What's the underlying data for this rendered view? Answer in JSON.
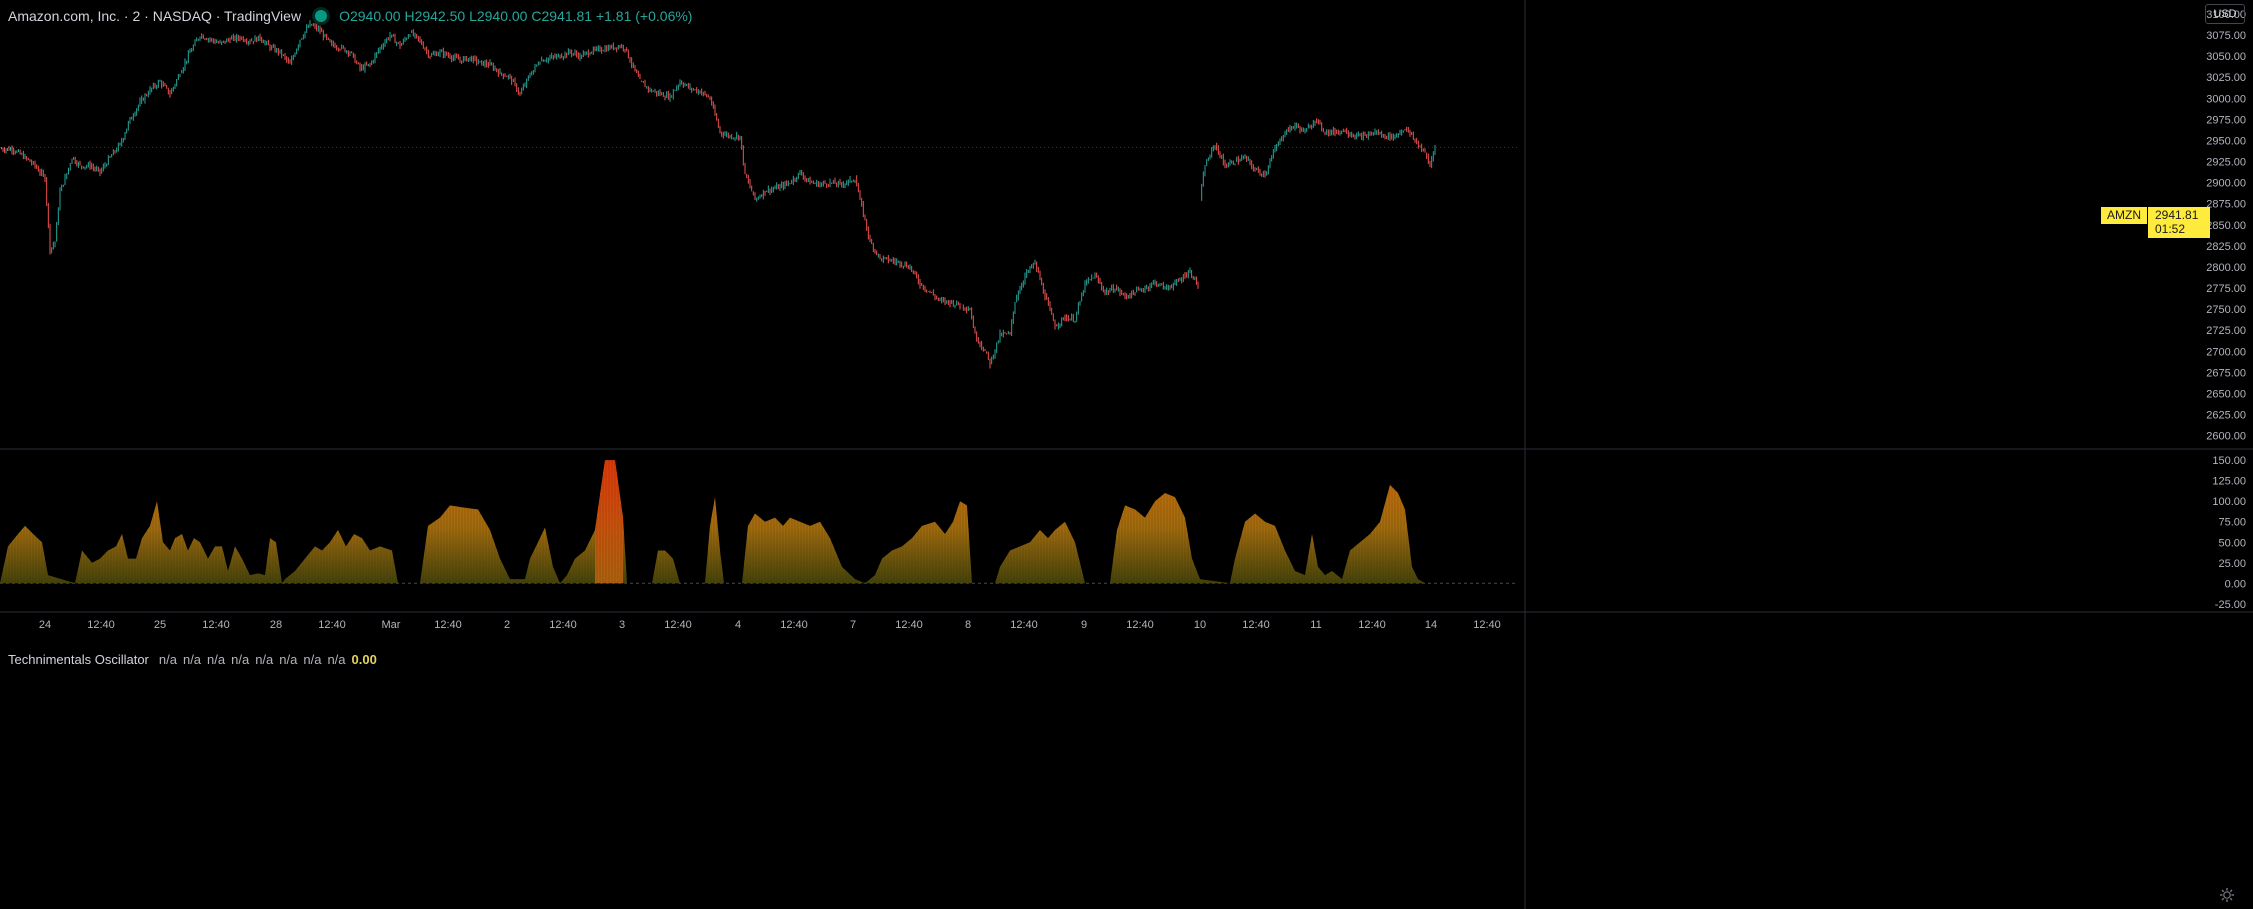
{
  "header": {
    "title": "Amazon.com, Inc. · 2 · NASDAQ · TradingView",
    "ohlc": "O2940.00  H2942.50  L2940.00  C2941.81  +1.81 (+0.06%)"
  },
  "currency_button": "USD",
  "price_tag": {
    "symbol": "AMZN",
    "price": "2941.81",
    "countdown": "01:52"
  },
  "oscillator_legend": {
    "name": "Technimentals Oscillator",
    "values": [
      "n/a",
      "n/a",
      "n/a",
      "n/a",
      "n/a",
      "n/a",
      "n/a",
      "n/a"
    ],
    "last": "0.00"
  },
  "colors": {
    "up": "#26a69a",
    "down": "#ef5350",
    "osc_low": "#5e5a10",
    "osc_mid": "#d4850f",
    "osc_high": "#e34a0c",
    "axis_text": "#b2b5be"
  },
  "chart_data": [
    {
      "type": "candlestick",
      "title": "Amazon.com, Inc. · 2 · NASDAQ",
      "ylim": [
        2590,
        3100
      ],
      "yticks": [
        3100,
        3075,
        3050,
        3025,
        3000,
        2975,
        2950,
        2925,
        2900,
        2875,
        2850,
        2825,
        2800,
        2775,
        2750,
        2725,
        2700,
        2675,
        2650,
        2625,
        2600
      ],
      "ytick_labels": [
        "3100.00",
        "3075.00",
        "3050.00",
        "3025.00",
        "3000.00",
        "2975.00",
        "2950.00",
        "2925.00",
        "2900.00",
        "2875.00",
        "2850.00",
        "2825.00",
        "2800.00",
        "2775.00",
        "2750.00",
        "2725.00",
        "2700.00",
        "2675.00",
        "2650.00",
        "2625.00",
        "2600.00"
      ],
      "x_labels": [
        "24",
        "12:40",
        "25",
        "12:40",
        "28",
        "12:40",
        "Mar",
        "12:40",
        "2",
        "12:40",
        "3",
        "12:40",
        "4",
        "12:40",
        "7",
        "12:40",
        "8",
        "12:40",
        "9",
        "12:40",
        "10",
        "12:40",
        "11",
        "12:40",
        "14",
        "12:40"
      ],
      "path_points": [
        [
          0,
          2940
        ],
        [
          12,
          2940
        ],
        [
          25,
          2930
        ],
        [
          35,
          2920
        ],
        [
          45,
          2905
        ],
        [
          50,
          2820
        ],
        [
          55,
          2830
        ],
        [
          60,
          2890
        ],
        [
          65,
          2905
        ],
        [
          72,
          2930
        ],
        [
          80,
          2920
        ],
        [
          90,
          2920
        ],
        [
          100,
          2912
        ],
        [
          110,
          2930
        ],
        [
          120,
          2945
        ],
        [
          130,
          2975
        ],
        [
          140,
          2995
        ],
        [
          150,
          3010
        ],
        [
          160,
          3020
        ],
        [
          170,
          3005
        ],
        [
          180,
          3030
        ],
        [
          190,
          3055
        ],
        [
          200,
          3075
        ],
        [
          210,
          3070
        ],
        [
          220,
          3065
        ],
        [
          230,
          3070
        ],
        [
          240,
          3072
        ],
        [
          250,
          3068
        ],
        [
          260,
          3072
        ],
        [
          270,
          3060
        ],
        [
          280,
          3055
        ],
        [
          290,
          3040
        ],
        [
          300,
          3070
        ],
        [
          310,
          3088
        ],
        [
          320,
          3080
        ],
        [
          330,
          3065
        ],
        [
          340,
          3060
        ],
        [
          350,
          3055
        ],
        [
          360,
          3035
        ],
        [
          370,
          3040
        ],
        [
          380,
          3060
        ],
        [
          390,
          3075
        ],
        [
          400,
          3062
        ],
        [
          410,
          3078
        ],
        [
          420,
          3068
        ],
        [
          430,
          3050
        ],
        [
          440,
          3055
        ],
        [
          450,
          3050
        ],
        [
          460,
          3045
        ],
        [
          470,
          3048
        ],
        [
          480,
          3042
        ],
        [
          490,
          3040
        ],
        [
          500,
          3030
        ],
        [
          510,
          3025
        ],
        [
          520,
          3005
        ],
        [
          530,
          3028
        ],
        [
          540,
          3045
        ],
        [
          550,
          3048
        ],
        [
          560,
          3050
        ],
        [
          570,
          3055
        ],
        [
          580,
          3050
        ],
        [
          590,
          3055
        ],
        [
          600,
          3058
        ],
        [
          610,
          3060
        ],
        [
          620,
          3062
        ],
        [
          625,
          3060
        ],
        [
          630,
          3045
        ],
        [
          640,
          3020
        ],
        [
          650,
          3010
        ],
        [
          660,
          3005
        ],
        [
          670,
          3002
        ],
        [
          680,
          3020
        ],
        [
          690,
          3012
        ],
        [
          700,
          3008
        ],
        [
          710,
          3000
        ],
        [
          720,
          2960
        ],
        [
          730,
          2955
        ],
        [
          740,
          2955
        ],
        [
          745,
          2910
        ],
        [
          755,
          2880
        ],
        [
          765,
          2890
        ],
        [
          780,
          2895
        ],
        [
          790,
          2900
        ],
        [
          800,
          2912
        ],
        [
          810,
          2900
        ],
        [
          820,
          2898
        ],
        [
          830,
          2900
        ],
        [
          840,
          2898
        ],
        [
          850,
          2902
        ],
        [
          855,
          2905
        ],
        [
          860,
          2880
        ],
        [
          870,
          2830
        ],
        [
          880,
          2810
        ],
        [
          890,
          2808
        ],
        [
          900,
          2805
        ],
        [
          910,
          2800
        ],
        [
          920,
          2780
        ],
        [
          930,
          2770
        ],
        [
          940,
          2760
        ],
        [
          950,
          2758
        ],
        [
          960,
          2755
        ],
        [
          970,
          2750
        ],
        [
          975,
          2720
        ],
        [
          985,
          2700
        ],
        [
          990,
          2685
        ],
        [
          1000,
          2720
        ],
        [
          1010,
          2720
        ],
        [
          1015,
          2760
        ],
        [
          1025,
          2790
        ],
        [
          1035,
          2805
        ],
        [
          1045,
          2765
        ],
        [
          1055,
          2730
        ],
        [
          1065,
          2740
        ],
        [
          1075,
          2738
        ],
        [
          1085,
          2780
        ],
        [
          1095,
          2790
        ],
        [
          1105,
          2770
        ],
        [
          1115,
          2775
        ],
        [
          1125,
          2765
        ],
        [
          1135,
          2770
        ],
        [
          1145,
          2775
        ],
        [
          1155,
          2782
        ],
        [
          1165,
          2775
        ],
        [
          1175,
          2780
        ],
        [
          1185,
          2790
        ],
        [
          1190,
          2795
        ],
        [
          1198,
          2778
        ],
        null,
        [
          1200,
          2880
        ],
        [
          1205,
          2920
        ],
        [
          1215,
          2945
        ],
        [
          1225,
          2920
        ],
        [
          1235,
          2925
        ],
        [
          1245,
          2930
        ],
        [
          1255,
          2915
        ],
        [
          1265,
          2910
        ],
        [
          1275,
          2940
        ],
        [
          1285,
          2960
        ],
        [
          1295,
          2968
        ],
        [
          1305,
          2960
        ],
        [
          1315,
          2975
        ],
        [
          1325,
          2960
        ],
        [
          1335,
          2960
        ],
        [
          1345,
          2962
        ],
        [
          1355,
          2955
        ],
        [
          1365,
          2955
        ],
        [
          1375,
          2960
        ],
        [
          1385,
          2955
        ],
        [
          1395,
          2955
        ],
        [
          1405,
          2965
        ],
        [
          1415,
          2950
        ],
        [
          1425,
          2935
        ],
        [
          1430,
          2920
        ],
        [
          1435,
          2945
        ]
      ],
      "last_price": 2941.81
    },
    {
      "type": "area",
      "title": "Technimentals Oscillator",
      "ylim": [
        -35,
        160
      ],
      "yticks": [
        150,
        125,
        100,
        75,
        50,
        25,
        0,
        -25
      ],
      "ytick_labels": [
        "150.00",
        "125.00",
        "100.00",
        "75.00",
        "50.00",
        "25.00",
        "0.00",
        "-25.00"
      ],
      "baseline": 0,
      "points": [
        [
          0,
          0
        ],
        [
          8,
          45
        ],
        [
          18,
          60
        ],
        [
          25,
          70
        ],
        [
          35,
          58
        ],
        [
          42,
          50
        ],
        [
          48,
          10
        ],
        [
          75,
          0
        ],
        [
          82,
          40
        ],
        [
          92,
          25
        ],
        [
          100,
          30
        ],
        [
          108,
          40
        ],
        [
          116,
          45
        ],
        [
          122,
          60
        ],
        [
          128,
          30
        ],
        [
          136,
          30
        ],
        [
          142,
          55
        ],
        [
          150,
          70
        ],
        [
          157,
          100
        ],
        [
          163,
          50
        ],
        [
          170,
          40
        ],
        [
          175,
          55
        ],
        [
          182,
          60
        ],
        [
          188,
          40
        ],
        [
          194,
          55
        ],
        [
          200,
          50
        ],
        [
          208,
          30
        ],
        [
          215,
          45
        ],
        [
          222,
          45
        ],
        [
          228,
          15
        ],
        [
          235,
          45
        ],
        [
          242,
          30
        ],
        [
          250,
          10
        ],
        [
          258,
          12
        ],
        [
          265,
          10
        ],
        [
          270,
          55
        ],
        [
          276,
          50
        ],
        [
          282,
          0
        ],
        [
          285,
          5
        ],
        [
          295,
          15
        ],
        [
          305,
          30
        ],
        [
          315,
          45
        ],
        [
          322,
          40
        ],
        [
          330,
          50
        ],
        [
          338,
          65
        ],
        [
          346,
          45
        ],
        [
          354,
          60
        ],
        [
          362,
          55
        ],
        [
          370,
          40
        ],
        [
          380,
          45
        ],
        [
          392,
          40
        ],
        [
          398,
          0
        ],
        [
          420,
          0
        ],
        [
          428,
          70
        ],
        [
          440,
          80
        ],
        [
          450,
          95
        ],
        [
          465,
          92
        ],
        [
          478,
          90
        ],
        [
          490,
          65
        ],
        [
          500,
          30
        ],
        [
          510,
          5
        ],
        [
          525,
          5
        ],
        [
          530,
          30
        ],
        [
          538,
          50
        ],
        [
          545,
          68
        ],
        [
          553,
          20
        ],
        [
          560,
          0
        ],
        [
          567,
          10
        ],
        [
          575,
          30
        ],
        [
          585,
          40
        ],
        [
          595,
          65
        ],
        [
          605,
          150
        ],
        [
          615,
          150
        ],
        [
          623,
          80
        ],
        [
          627,
          0
        ],
        [
          652,
          0
        ],
        [
          658,
          40
        ],
        [
          665,
          40
        ],
        [
          673,
          30
        ],
        [
          680,
          0
        ],
        [
          705,
          0
        ],
        [
          710,
          70
        ],
        [
          715,
          105
        ],
        [
          720,
          40
        ],
        [
          724,
          0
        ],
        [
          742,
          0
        ],
        [
          748,
          70
        ],
        [
          755,
          85
        ],
        [
          765,
          75
        ],
        [
          775,
          80
        ],
        [
          783,
          70
        ],
        [
          790,
          80
        ],
        [
          800,
          75
        ],
        [
          810,
          70
        ],
        [
          820,
          75
        ],
        [
          830,
          55
        ],
        [
          842,
          20
        ],
        [
          855,
          5
        ],
        [
          865,
          0
        ],
        [
          875,
          10
        ],
        [
          882,
          30
        ],
        [
          892,
          40
        ],
        [
          902,
          45
        ],
        [
          912,
          55
        ],
        [
          922,
          70
        ],
        [
          935,
          75
        ],
        [
          945,
          60
        ],
        [
          953,
          75
        ],
        [
          960,
          100
        ],
        [
          967,
          95
        ],
        [
          972,
          0
        ],
        [
          995,
          0
        ],
        [
          1000,
          20
        ],
        [
          1010,
          40
        ],
        [
          1020,
          45
        ],
        [
          1030,
          50
        ],
        [
          1040,
          65
        ],
        [
          1048,
          55
        ],
        [
          1055,
          65
        ],
        [
          1065,
          75
        ],
        [
          1075,
          50
        ],
        [
          1085,
          0
        ],
        [
          1110,
          0
        ],
        [
          1117,
          65
        ],
        [
          1125,
          95
        ],
        [
          1135,
          90
        ],
        [
          1145,
          80
        ],
        [
          1155,
          100
        ],
        [
          1165,
          110
        ],
        [
          1175,
          105
        ],
        [
          1185,
          80
        ],
        [
          1192,
          30
        ],
        [
          1200,
          5
        ],
        [
          1230,
          0
        ],
        [
          1235,
          30
        ],
        [
          1245,
          75
        ],
        [
          1255,
          85
        ],
        [
          1265,
          75
        ],
        [
          1275,
          70
        ],
        [
          1285,
          40
        ],
        [
          1295,
          15
        ],
        [
          1305,
          10
        ],
        [
          1312,
          60
        ],
        [
          1318,
          20
        ],
        [
          1325,
          10
        ],
        [
          1332,
          15
        ],
        [
          1342,
          5
        ],
        [
          1350,
          40
        ],
        [
          1360,
          50
        ],
        [
          1370,
          60
        ],
        [
          1380,
          75
        ],
        [
          1390,
          120
        ],
        [
          1398,
          110
        ],
        [
          1405,
          90
        ],
        [
          1412,
          20
        ],
        [
          1418,
          5
        ],
        [
          1425,
          0
        ]
      ]
    }
  ]
}
